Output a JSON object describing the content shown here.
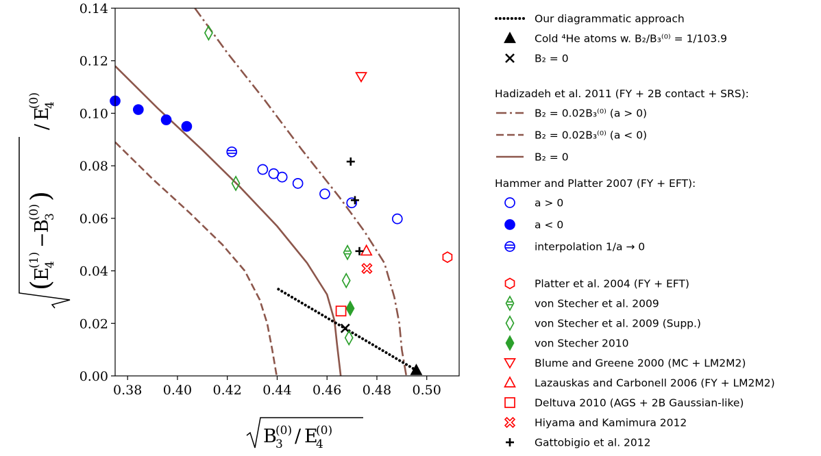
{
  "chart_data": {
    "type": "scatter",
    "xlabel": "√(B3(0)/E4(0))",
    "ylabel": "√(E4(1) − B3(0)) / E4(0)",
    "xlim": [
      0.375,
      0.513
    ],
    "ylim": [
      0.0,
      0.14
    ],
    "x_ticks": [
      "0.38",
      "0.40",
      "0.42",
      "0.44",
      "0.46",
      "0.48",
      "0.50"
    ],
    "y_ticks": [
      "0.00",
      "0.02",
      "0.04",
      "0.06",
      "0.08",
      "0.10",
      "0.12",
      "0.14"
    ],
    "grid": false,
    "legend_position": "outside-right",
    "series": [
      {
        "key": "our",
        "name": "Our diagrammatic approach",
        "kind": "dotted-line",
        "color": "#000000",
        "points": [
          [
            0.4405,
            0.033
          ],
          [
            0.4955,
            0.0023
          ]
        ]
      },
      {
        "key": "cold",
        "name": "Cold ⁴He atoms w. B₂/B₃⁽⁰⁾ = 1/103.9",
        "kind": "marker",
        "marker": "triangle-up-filled",
        "color": "#000000",
        "points": [
          [
            0.4958,
            0.0021
          ]
        ]
      },
      {
        "key": "b2zero",
        "name": "B₂ = 0",
        "kind": "marker",
        "marker": "x",
        "color": "#000000",
        "points": [
          [
            0.4673,
            0.0181
          ]
        ]
      },
      {
        "key": "hadi_dashdot",
        "name": "B₂ = 0.02B₃⁽⁰⁾ (a > 0)",
        "kind": "dashdot-line",
        "color": "#8c564b",
        "points": [
          [
            0.407,
            0.14
          ],
          [
            0.42,
            0.123
          ],
          [
            0.435,
            0.105
          ],
          [
            0.45,
            0.086
          ],
          [
            0.465,
            0.068
          ],
          [
            0.475,
            0.055
          ],
          [
            0.483,
            0.043
          ],
          [
            0.487,
            0.03
          ],
          [
            0.489,
            0.02
          ],
          [
            0.49,
            0.01
          ],
          [
            0.4918,
            0.0
          ]
        ]
      },
      {
        "key": "hadi_dashed",
        "name": "B₂ = 0.02B₃⁽⁰⁾ (a < 0)",
        "kind": "dashed-line",
        "color": "#8c564b",
        "points": [
          [
            0.375,
            0.089
          ],
          [
            0.39,
            0.075
          ],
          [
            0.405,
            0.062
          ],
          [
            0.418,
            0.05
          ],
          [
            0.427,
            0.04
          ],
          [
            0.433,
            0.029
          ],
          [
            0.436,
            0.02
          ],
          [
            0.438,
            0.01
          ],
          [
            0.4398,
            0.0
          ]
        ]
      },
      {
        "key": "hadi_solid",
        "name": "B₂ = 0",
        "kind": "solid-line",
        "color": "#8c564b",
        "points": [
          [
            0.375,
            0.118
          ],
          [
            0.392,
            0.102
          ],
          [
            0.41,
            0.086
          ],
          [
            0.425,
            0.072
          ],
          [
            0.44,
            0.057
          ],
          [
            0.452,
            0.043
          ],
          [
            0.46,
            0.031
          ],
          [
            0.463,
            0.021
          ],
          [
            0.464,
            0.012
          ],
          [
            0.4655,
            0.0
          ]
        ]
      },
      {
        "key": "hp_pos",
        "name": "a > 0",
        "kind": "marker",
        "marker": "circle-open",
        "color": "#0000ff",
        "points": [
          [
            0.4342,
            0.0786
          ],
          [
            0.4386,
            0.077
          ],
          [
            0.442,
            0.0757
          ],
          [
            0.4483,
            0.0733
          ],
          [
            0.4591,
            0.0693
          ],
          [
            0.4699,
            0.0659
          ],
          [
            0.4882,
            0.0598
          ]
        ]
      },
      {
        "key": "hp_neg",
        "name": "a < 0",
        "kind": "marker",
        "marker": "circle-filled",
        "color": "#0000ff",
        "points": [
          [
            0.375,
            0.1047
          ],
          [
            0.3843,
            0.1014
          ],
          [
            0.3955,
            0.0975
          ],
          [
            0.4037,
            0.095
          ]
        ]
      },
      {
        "key": "hp_interp",
        "name": "interpolation 1/a → 0",
        "kind": "marker",
        "marker": "circle-hline",
        "color": "#0000ff",
        "points": [
          [
            0.4218,
            0.0853
          ]
        ]
      },
      {
        "key": "platter",
        "name": "Platter et al. 2004 (FY + EFT)",
        "kind": "marker",
        "marker": "hexagon-open",
        "color": "#ff0000",
        "points": [
          [
            0.5083,
            0.0452
          ]
        ]
      },
      {
        "key": "vs2009",
        "name": "von Stecher et al. 2009",
        "kind": "marker",
        "marker": "diamond-hline",
        "color": "#2ca02c",
        "points": [
          [
            0.4682,
            0.047
          ]
        ]
      },
      {
        "key": "vs2009s",
        "name": "von Stecher et al. 2009 (Supp.)",
        "kind": "marker",
        "marker": "diamond-open",
        "color": "#2ca02c",
        "points": [
          [
            0.4125,
            0.1306
          ],
          [
            0.4234,
            0.0733
          ],
          [
            0.4677,
            0.0363
          ],
          [
            0.4688,
            0.0145
          ]
        ]
      },
      {
        "key": "vs2010",
        "name": "von Stecher 2010",
        "kind": "marker",
        "marker": "diamond-filled",
        "color": "#2ca02c",
        "points": [
          [
            0.4693,
            0.0257
          ]
        ]
      },
      {
        "key": "blume",
        "name": "Blume and Greene 2000 (MC + LM2M2)",
        "kind": "marker",
        "marker": "triangle-down-open",
        "color": "#ff0000",
        "points": [
          [
            0.4737,
            0.1139
          ]
        ]
      },
      {
        "key": "lazauskas",
        "name": "Lazauskas and Carbonell 2006 (FY + LM2M2)",
        "kind": "marker",
        "marker": "triangle-up-open",
        "color": "#ff0000",
        "points": [
          [
            0.4758,
            0.0476
          ]
        ]
      },
      {
        "key": "deltuva",
        "name": "Deltuva 2010 (AGS + 2B Gaussian-like)",
        "kind": "marker",
        "marker": "square-open",
        "color": "#ff0000",
        "points": [
          [
            0.4656,
            0.0247
          ]
        ]
      },
      {
        "key": "hiyama",
        "name": "Hiyama and Kamimura 2012",
        "kind": "marker",
        "marker": "x-open",
        "color": "#ff0000",
        "points": [
          [
            0.476,
            0.0409
          ]
        ]
      },
      {
        "key": "gatto",
        "name": "Gattobigio et al. 2012",
        "kind": "marker",
        "marker": "plus",
        "color": "#000000",
        "points": [
          [
            0.4695,
            0.0816
          ],
          [
            0.4712,
            0.0669
          ],
          [
            0.473,
            0.0475
          ]
        ]
      }
    ],
    "legend": {
      "group1": [
        "our",
        "cold",
        "b2zero"
      ],
      "group2_title": "Hadizadeh et al. 2011 (FY + 2B contact + SRS):",
      "group2": [
        "hadi_dashdot",
        "hadi_dashed",
        "hadi_solid"
      ],
      "group3_title": "Hammer and Platter 2007 (FY + EFT):",
      "group3": [
        "hp_pos",
        "hp_neg",
        "hp_interp"
      ],
      "group4": [
        "platter",
        "vs2009",
        "vs2009s",
        "vs2010",
        "blume",
        "lazauskas",
        "deltuva",
        "hiyama",
        "gatto"
      ]
    }
  }
}
